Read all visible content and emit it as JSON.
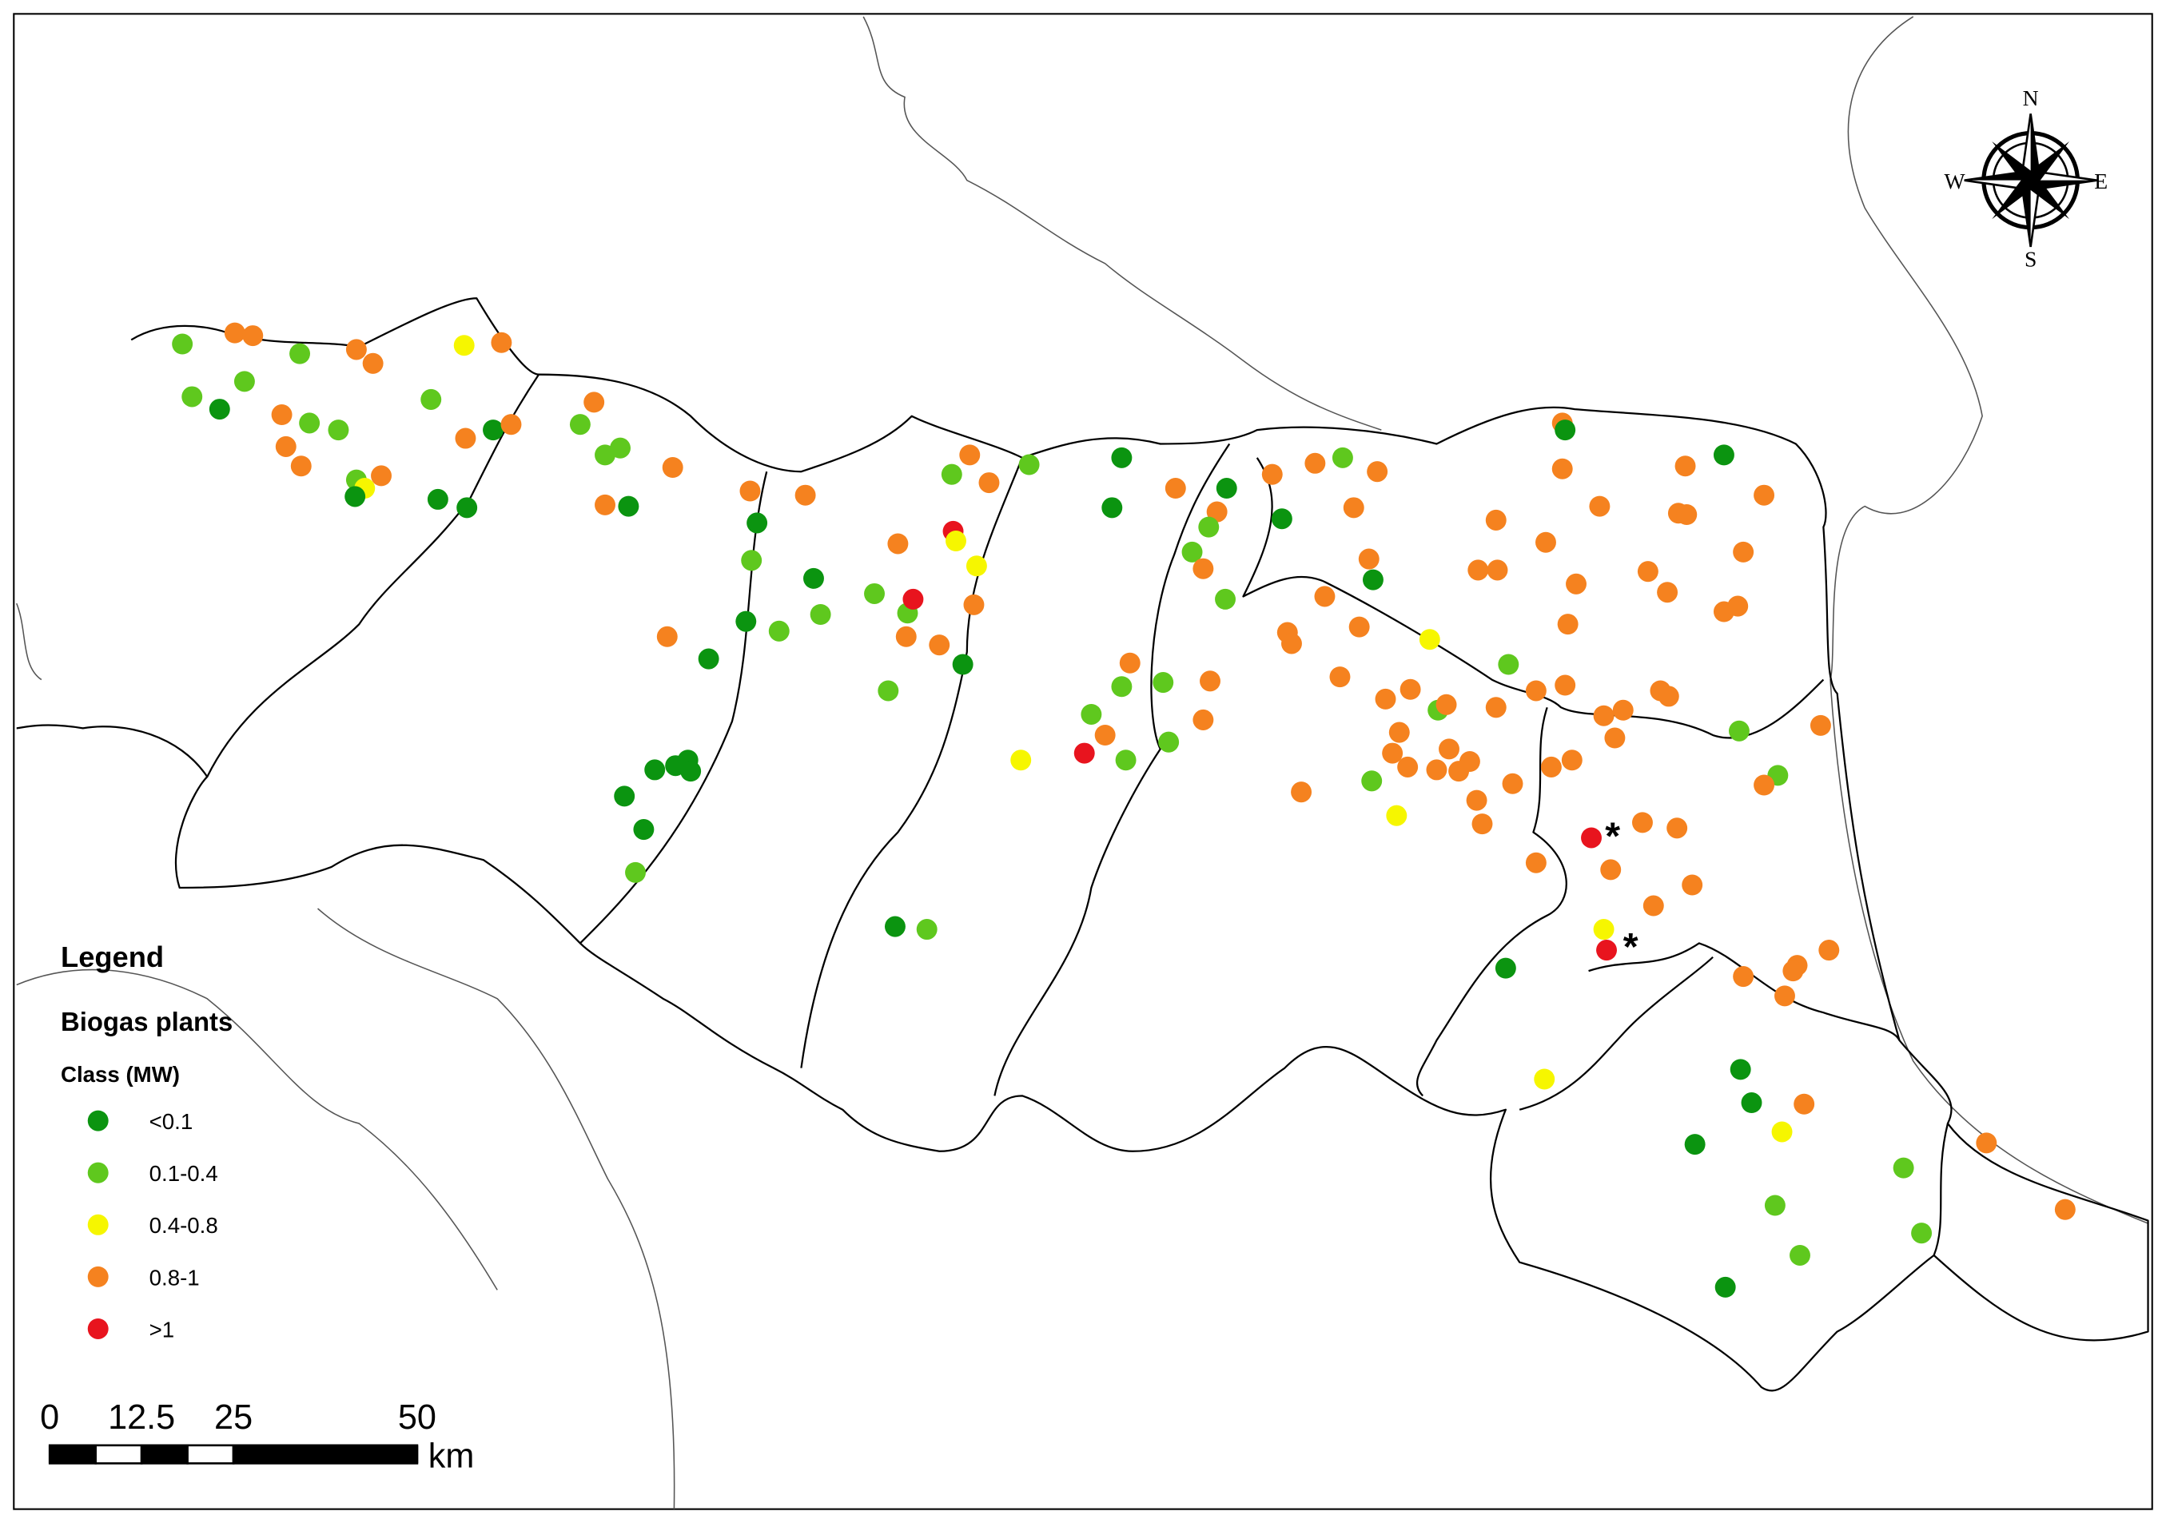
{
  "legend": {
    "title": "Legend",
    "subtitle": "Biogas plants",
    "class_title": "Class (MW)",
    "items": [
      {
        "label": "<0.1",
        "color": "#0b9410"
      },
      {
        "label": "0.1-0.4",
        "color": "#5fc81e"
      },
      {
        "label": "0.4-0.8",
        "color": "#f6f600"
      },
      {
        "label": "0.8-1",
        "color": "#f5821f"
      },
      {
        "label": ">1",
        "color": "#e8141e"
      }
    ]
  },
  "scale_bar": {
    "ticks": [
      0,
      12.5,
      25,
      50
    ],
    "unit": "km"
  },
  "compass": {
    "north": "N",
    "east": "E",
    "south": "S",
    "west": "W"
  },
  "markers": [
    "*",
    "*"
  ]
}
